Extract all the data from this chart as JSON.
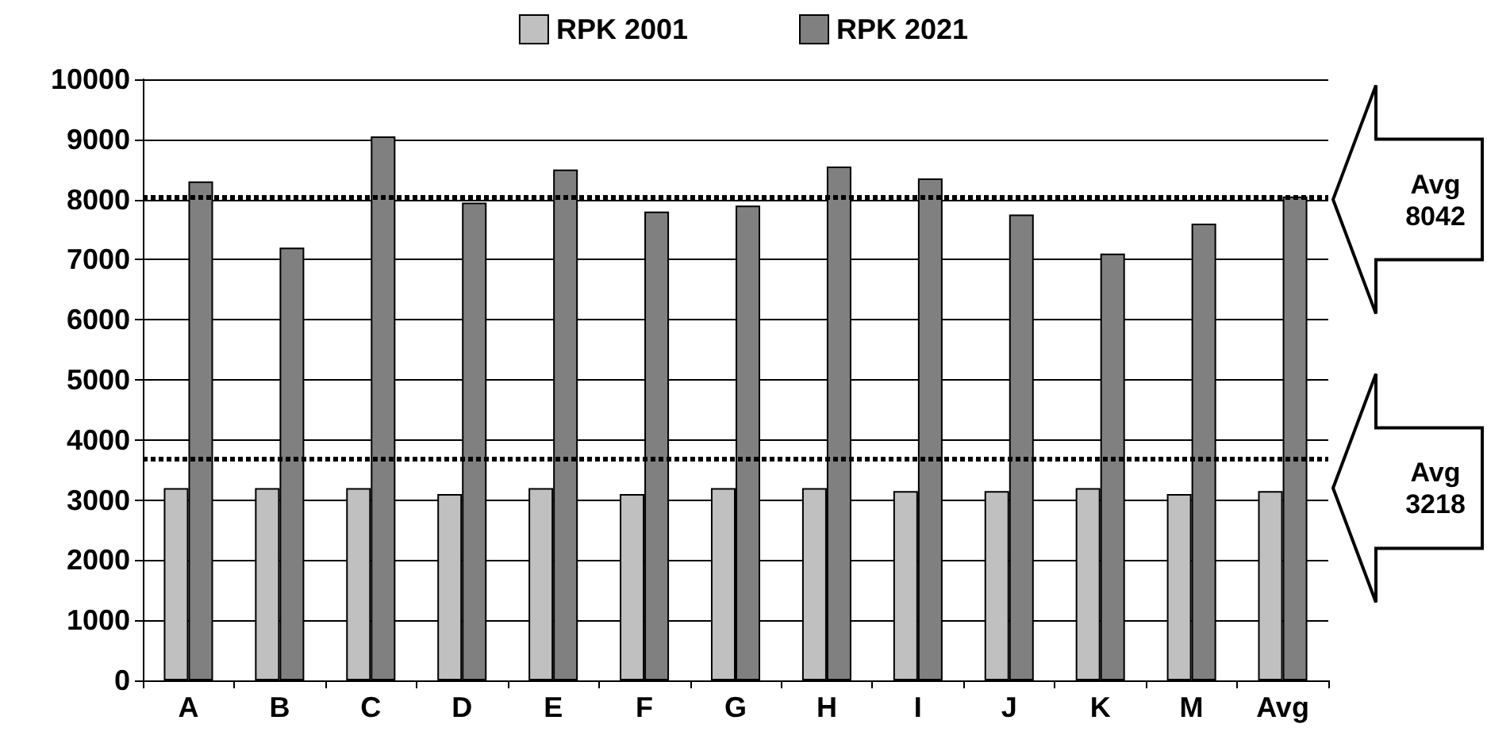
{
  "chart_data": {
    "type": "bar",
    "categories": [
      "A",
      "B",
      "C",
      "D",
      "E",
      "F",
      "G",
      "H",
      "I",
      "J",
      "K",
      "M",
      "Avg"
    ],
    "series": [
      {
        "name": "RPK 2001",
        "color": "#c0c0c0",
        "values": [
          3200,
          3200,
          3200,
          3100,
          3200,
          3100,
          3200,
          3200,
          3150,
          3150,
          3200,
          3100,
          3150
        ]
      },
      {
        "name": "RPK 2021",
        "color": "#808080",
        "values": [
          8300,
          7200,
          9050,
          7950,
          8500,
          7800,
          7900,
          8550,
          8350,
          7750,
          7100,
          7600,
          8050
        ]
      }
    ],
    "ylim": [
      0,
      10000
    ],
    "yticks": [
      0,
      1000,
      2000,
      3000,
      4000,
      5000,
      6000,
      7000,
      8000,
      9000,
      10000
    ],
    "grid": "y",
    "legend": "top",
    "ref_lines": [
      {
        "axis": "y",
        "value": 8042,
        "line_style": "dotted",
        "color": "#000000"
      },
      {
        "axis": "y",
        "value": 3700,
        "line_style": "dotted",
        "color": "#000000"
      }
    ],
    "annotations": [
      "Avg 8042",
      "Avg 3218"
    ]
  }
}
